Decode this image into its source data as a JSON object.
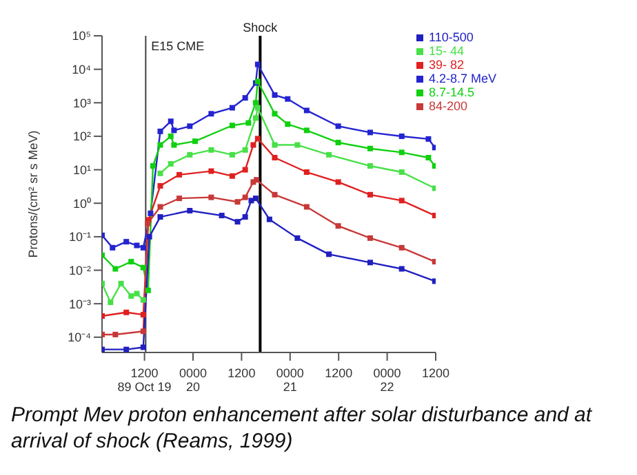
{
  "chart_data": {
    "type": "line",
    "ylabel": "Protons/(cm² sr s MeV)",
    "log": "y",
    "marker": "square",
    "line_style": "solid",
    "grid": false,
    "legend": "top right",
    "xlim": [
      "1989-10-19T01:30",
      "1989-10-22T12:00"
    ],
    "xticks": [
      {
        "value": "1989-10-19T12:00",
        "label": "1200\n89 Oct 19"
      },
      {
        "value": "1989-10-20T00:00",
        "label": "0000\n20"
      },
      {
        "value": "1989-10-20T12:00",
        "label": "1200"
      },
      {
        "value": "1989-10-21T00:00",
        "label": "0000\n21"
      },
      {
        "value": "1989-10-21T12:00",
        "label": "1200"
      },
      {
        "value": "1989-10-22T00:00",
        "label": "0000\n22"
      },
      {
        "value": "1989-10-22T12:00",
        "label": "1200"
      }
    ],
    "ylim": [
      3.5e-05,
      100000
    ],
    "yticks": [
      {
        "value": 0.0001,
        "label": "10⁻⁴"
      },
      {
        "value": 0.001,
        "label": "10⁻³"
      },
      {
        "value": 0.01,
        "label": "10⁻²"
      },
      {
        "value": 0.1,
        "label": "10⁻¹"
      },
      {
        "value": 1,
        "label": "10⁰"
      },
      {
        "value": 10,
        "label": "10¹"
      },
      {
        "value": 100,
        "label": "10²"
      },
      {
        "value": 1000,
        "label": "10³"
      },
      {
        "value": 10000,
        "label": "10⁴"
      },
      {
        "value": 100000,
        "label": "10⁵"
      }
    ],
    "ref_lines": [
      {
        "axis": "x",
        "value": "1989-10-19T12:18",
        "label": "E15 CME",
        "color": "#404040"
      },
      {
        "axis": "x",
        "value": "1989-10-20T16:36",
        "label": "Shock",
        "color": "#000000"
      }
    ],
    "annotations": [
      "Prompt Mev proton enhancement after solar disturbance and at arrival of shock (Reams, 1999)"
    ],
    "series": [
      {
        "name": "4.2-8.7 MeV",
        "color": "#2424d0",
        "x": [
          "1989-10-19T01:30",
          "1989-10-19T04:06",
          "1989-10-19T07:30",
          "1989-10-19T10:06",
          "1989-10-19T11:42",
          "1989-10-19T13:30",
          "1989-10-19T15:54",
          "1989-10-19T18:30",
          "1989-10-19T19:18",
          "1989-10-19T23:12",
          "1989-10-20T04:30",
          "1989-10-20T09:42",
          "1989-10-20T12:54",
          "1989-10-20T15:30",
          "1989-10-20T16:00",
          "1989-10-20T20:12",
          "1989-10-20T23:24",
          "1989-10-21T04:06",
          "1989-10-21T11:54",
          "1989-10-21T19:48",
          "1989-10-22T03:36",
          "1989-10-22T10:12",
          "1989-10-22T11:48"
        ],
        "values": [
          0.11,
          0.047,
          0.071,
          0.055,
          0.047,
          0.5,
          140,
          280,
          150,
          200,
          470,
          710,
          1400,
          3900,
          14000,
          1700,
          1300,
          590,
          200,
          130,
          100,
          83,
          46
        ]
      },
      {
        "name": "8.7-14.5",
        "color": "#10d010",
        "x": [
          "1989-10-19T01:30",
          "1989-10-19T04:48",
          "1989-10-19T08:42",
          "1989-10-19T11:42",
          "1989-10-19T12:54",
          "1989-10-19T14:06",
          "1989-10-19T15:54",
          "1989-10-19T18:30",
          "1989-10-19T19:18",
          "1989-10-20T00:30",
          "1989-10-20T09:42",
          "1989-10-20T13:42",
          "1989-10-20T15:30",
          "1989-10-20T16:00",
          "1989-10-20T20:12",
          "1989-10-20T23:24",
          "1989-10-21T04:06",
          "1989-10-21T11:54",
          "1989-10-21T19:48",
          "1989-10-22T03:36",
          "1989-10-22T10:12",
          "1989-10-22T11:48"
        ],
        "values": [
          0.028,
          0.011,
          0.018,
          0.012,
          0.0025,
          13,
          55,
          100,
          55,
          71,
          210,
          250,
          1000,
          4300,
          470,
          230,
          150,
          65,
          43,
          33,
          23,
          13
        ]
      },
      {
        "name": "15- 44",
        "color": "#48e048",
        "x": [
          "1989-10-19T01:30",
          "1989-10-19T03:36",
          "1989-10-19T06:12",
          "1989-10-19T08:42",
          "1989-10-19T10:06",
          "1989-10-19T11:42",
          "1989-10-19T13:30",
          "1989-10-19T15:54",
          "1989-10-19T18:30",
          "1989-10-19T23:12",
          "1989-10-20T04:30",
          "1989-10-20T09:42",
          "1989-10-20T12:54",
          "1989-10-20T15:30",
          "1989-10-20T16:00",
          "1989-10-20T20:12",
          "1989-10-21T01:48",
          "1989-10-21T09:36",
          "1989-10-21T19:48",
          "1989-10-22T03:36",
          "1989-10-22T11:48"
        ],
        "values": [
          0.004,
          0.0011,
          0.004,
          0.0017,
          0.002,
          0.0013,
          null,
          7.8,
          15,
          28,
          39,
          28,
          39,
          350,
          710,
          55,
          55,
          28,
          13,
          8.5,
          2.8
        ]
      },
      {
        "name": "39- 82",
        "color": "#e02020",
        "x": [
          "1989-10-19T01:30",
          "1989-10-19T07:30",
          "1989-10-19T11:42",
          "1989-10-19T13:00",
          "1989-10-19T15:54",
          "1989-10-19T20:36",
          "1989-10-20T04:30",
          "1989-10-20T09:42",
          "1989-10-20T12:54",
          "1989-10-20T14:54",
          "1989-10-20T16:00",
          "1989-10-20T20:12",
          "1989-10-21T04:06",
          "1989-10-21T11:54",
          "1989-10-21T19:48",
          "1989-10-22T03:36",
          "1989-10-22T11:48"
        ],
        "values": [
          0.00043,
          0.00055,
          0.00047,
          0.32,
          3.3,
          7.1,
          9.1,
          6.5,
          10,
          55,
          85,
          23,
          8.5,
          4.3,
          1.8,
          1.2,
          0.43
        ]
      },
      {
        "name": "84-200",
        "color": "#c83838",
        "x": [
          "1989-10-19T01:30",
          "1989-10-19T04:48",
          "1989-10-19T11:42",
          "1989-10-19T12:48",
          "1989-10-19T15:54",
          "1989-10-19T20:36",
          "1989-10-20T04:30",
          "1989-10-20T11:00",
          "1989-10-20T12:54",
          "1989-10-20T14:54",
          "1989-10-20T15:42",
          "1989-10-20T20:12",
          "1989-10-21T04:06",
          "1989-10-21T11:54",
          "1989-10-21T19:48",
          "1989-10-22T03:36",
          "1989-10-22T11:48"
        ],
        "values": [
          0.00012,
          0.00012,
          0.00015,
          0.25,
          0.78,
          1.4,
          1.5,
          1.1,
          1.5,
          4.3,
          5,
          1.8,
          0.78,
          0.21,
          0.091,
          0.047,
          0.018
        ]
      },
      {
        "name": "110-500",
        "color": "#2020c0",
        "x": [
          "1989-10-19T01:30",
          "1989-10-19T07:30",
          "1989-10-19T11:42",
          "1989-10-19T13:12",
          "1989-10-19T15:54",
          "1989-10-19T23:12",
          "1989-10-20T07:06",
          "1989-10-20T11:00",
          "1989-10-20T12:54",
          "1989-10-20T14:24",
          "1989-10-20T15:30",
          "1989-10-20T18:54",
          "1989-10-21T01:48",
          "1989-10-21T09:36",
          "1989-10-21T19:48",
          "1989-10-22T03:36",
          "1989-10-22T11:48"
        ],
        "values": [
          4.3e-05,
          4.3e-05,
          5e-05,
          0.1,
          0.39,
          0.6,
          0.43,
          0.28,
          0.39,
          1.2,
          1.4,
          0.33,
          0.091,
          0.03,
          0.017,
          0.011,
          0.0047
        ]
      }
    ]
  }
}
